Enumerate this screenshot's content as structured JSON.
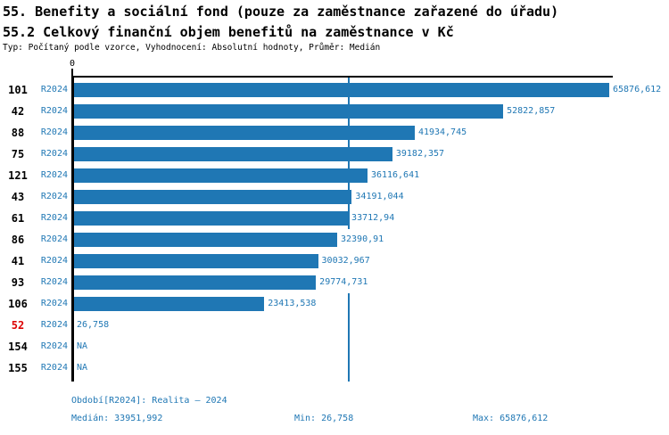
{
  "header": {
    "title_line1": "55. Benefity a sociální fond (pouze za zaměstnance zařazené do úřadu)",
    "title_line2": "55.2 Celkový finanční objem benefitů na zaměstnance v Kč",
    "subtitle": "Typ: Počítaný podle vzorce, Vyhodnocení: Absolutní hodnoty, Průměr: Medián"
  },
  "axis": {
    "zero_label": "0"
  },
  "rows": [
    {
      "org": "101",
      "period": "R2024",
      "value": "65876,612",
      "highlight": false
    },
    {
      "org": "42",
      "period": "R2024",
      "value": "52822,857",
      "highlight": false
    },
    {
      "org": "88",
      "period": "R2024",
      "value": "41934,745",
      "highlight": false
    },
    {
      "org": "75",
      "period": "R2024",
      "value": "39182,357",
      "highlight": false
    },
    {
      "org": "121",
      "period": "R2024",
      "value": "36116,641",
      "highlight": false
    },
    {
      "org": "43",
      "period": "R2024",
      "value": "34191,044",
      "highlight": false
    },
    {
      "org": "61",
      "period": "R2024",
      "value": "33712,94",
      "highlight": false
    },
    {
      "org": "86",
      "period": "R2024",
      "value": "32390,91",
      "highlight": false
    },
    {
      "org": "41",
      "period": "R2024",
      "value": "30032,967",
      "highlight": false
    },
    {
      "org": "93",
      "period": "R2024",
      "value": "29774,731",
      "highlight": false
    },
    {
      "org": "106",
      "period": "R2024",
      "value": "23413,538",
      "highlight": false
    },
    {
      "org": "52",
      "period": "R2024",
      "value": "26,758",
      "highlight": true
    },
    {
      "org": "154",
      "period": "R2024",
      "value": "NA",
      "highlight": false
    },
    {
      "org": "155",
      "period": "R2024",
      "value": "NA",
      "highlight": false
    }
  ],
  "footer": {
    "period_line": "Období[R2024]: Realita – 2024",
    "median": "Medián: 33951,992",
    "min": "Min: 26,758",
    "max": "Max: 65876,612"
  },
  "colors": {
    "bar_blue": "#1f77b4",
    "label_blue": "#1f77b4",
    "highlight_red": "#dd0000",
    "axis_black": "#000000"
  },
  "chart_data": {
    "type": "bar",
    "orientation": "horizontal",
    "title": "55.2 Celkový finanční objem benefitů na zaměstnance v Kč",
    "categories": [
      "101",
      "42",
      "88",
      "75",
      "121",
      "43",
      "61",
      "86",
      "41",
      "93",
      "106",
      "52",
      "154",
      "155"
    ],
    "series": [
      {
        "name": "R2024",
        "values": [
          65876.612,
          52822.857,
          41934.745,
          39182.357,
          36116.641,
          34191.044,
          33712.94,
          32390.91,
          30032.967,
          29774.731,
          23413.538,
          26.758,
          null,
          null
        ]
      }
    ],
    "value_labels": [
      "65876,612",
      "52822,857",
      "41934,745",
      "39182,357",
      "36116,641",
      "34191,044",
      "33712,94",
      "32390,91",
      "30032,967",
      "29774,731",
      "23413,538",
      "26,758",
      "NA",
      "NA"
    ],
    "xlabel": "",
    "ylabel": "",
    "xlim": [
      0,
      66400
    ],
    "grid": false,
    "legend_position": "none",
    "median_reference_line": 33951.992,
    "stats": {
      "median": 33951.992,
      "min": 26.758,
      "max": 65876.612
    }
  }
}
